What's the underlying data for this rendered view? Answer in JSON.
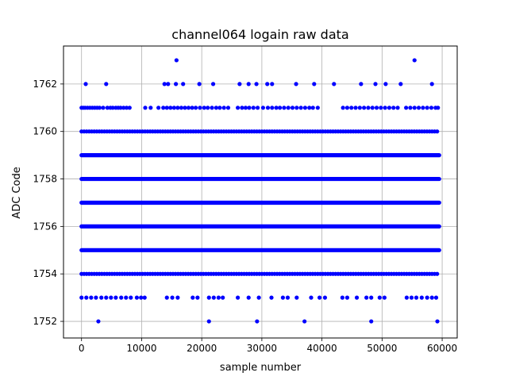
{
  "chart_data": {
    "type": "scatter",
    "title": "channel064 logain raw data",
    "xlabel": "sample number",
    "ylabel": "ADC Code",
    "xlim": [
      -3000,
      62500
    ],
    "ylim": [
      1751.3,
      1763.6
    ],
    "xticks": [
      0,
      10000,
      20000,
      30000,
      40000,
      50000,
      60000
    ],
    "yticks": [
      1752,
      1754,
      1756,
      1758,
      1760,
      1762
    ],
    "grid": true,
    "marker_color": "#0000ff",
    "series": [
      {
        "label_note": "",
        "dense_levels": [
          {
            "y": 1755,
            "x_range": [
              0,
              59500
            ]
          },
          {
            "y": 1756,
            "x_range": [
              0,
              59500
            ]
          },
          {
            "y": 1757,
            "x_range": [
              0,
              59500
            ]
          },
          {
            "y": 1758,
            "x_range": [
              0,
              59500
            ]
          },
          {
            "y": 1759,
            "x_range": [
              0,
              59500
            ]
          }
        ],
        "semi_dense_levels": [
          {
            "y": 1754,
            "x_range": [
              0,
              59500
            ]
          },
          {
            "y": 1760,
            "x_range": [
              0,
              59500
            ]
          }
        ],
        "sparse_points": [
          {
            "y": 1763,
            "x": [
              15800,
              55400
            ]
          },
          {
            "y": 1762,
            "x": [
              700,
              4100,
              13800,
              14400,
              15700,
              16900,
              19600,
              21900,
              26300,
              27800,
              29100,
              30900,
              31700,
              35700,
              38700,
              42000,
              46500,
              48900,
              50600,
              53100,
              58300
            ]
          },
          {
            "y": 1761,
            "x": [
              0,
              300,
              600,
              1000,
              1400,
              1800,
              2200,
              2600,
              3000,
              3600,
              4300,
              4800,
              5200,
              5700,
              6100,
              6500,
              7000,
              7500,
              8000,
              10600,
              11500,
              12800,
              13600,
              14200,
              14800,
              15400,
              16000,
              16600,
              17200,
              17800,
              18400,
              19000,
              19700,
              20400,
              21000,
              21700,
              22400,
              23000,
              23700,
              24400,
              26000,
              26700,
              27300,
              27900,
              28600,
              29300,
              30200,
              31000,
              31700,
              32400,
              33000,
              33700,
              34400,
              35100,
              35800,
              36500,
              37200,
              37900,
              38500,
              39300,
              43500,
              44200,
              44900,
              45600,
              46300,
              47000,
              47700,
              48400,
              49100,
              49800,
              50500,
              51200,
              51900,
              52600,
              54000,
              54700,
              55400,
              56100,
              56800,
              57500,
              58200,
              58900,
              59300
            ]
          },
          {
            "y": 1753,
            "x": [
              0,
              800,
              1600,
              2400,
              3300,
              4100,
              4900,
              5700,
              6600,
              7400,
              8200,
              9200,
              9900,
              10500,
              14200,
              15100,
              16000,
              18500,
              19300,
              21200,
              22000,
              22800,
              23500,
              26000,
              27800,
              29500,
              31600,
              33500,
              34300,
              35800,
              38200,
              39600,
              40500,
              43400,
              44200,
              45800,
              47400,
              48200,
              49600,
              50400,
              54100,
              54900,
              55700,
              56600,
              57500,
              58300,
              59000
            ]
          },
          {
            "y": 1752,
            "x": [
              2800,
              21200,
              29200,
              37100,
              48200,
              59200
            ]
          }
        ]
      }
    ]
  }
}
